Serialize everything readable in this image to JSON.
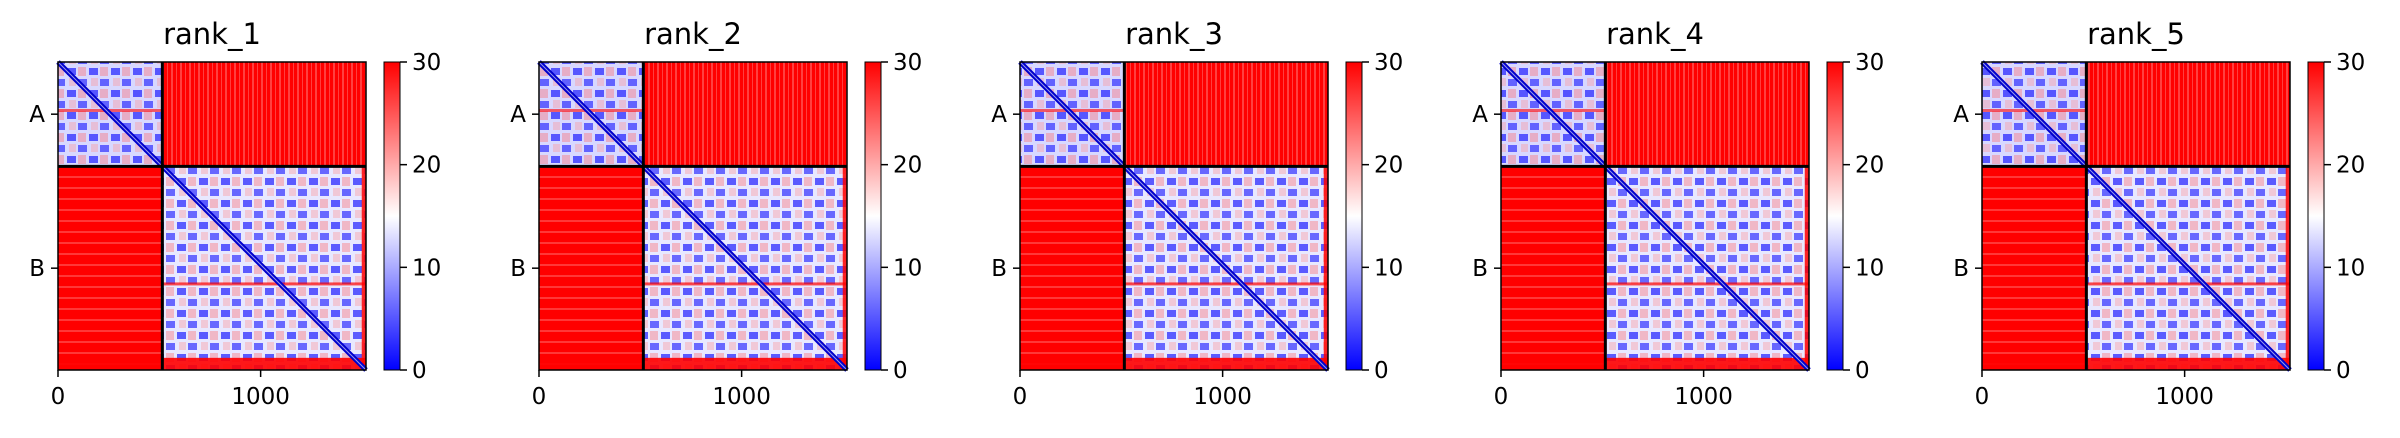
{
  "chart_data": [
    {
      "type": "heatmap",
      "title": "rank_1",
      "chains": [
        "A",
        "B"
      ],
      "chain_boundary": 515,
      "length": 1520,
      "xticks": [
        0,
        1000
      ],
      "colorbar": {
        "ticks": [
          0,
          10,
          20,
          30
        ],
        "vmin": 0,
        "vmax": 30,
        "colormap": "bwr"
      }
    },
    {
      "type": "heatmap",
      "title": "rank_2",
      "chains": [
        "A",
        "B"
      ],
      "chain_boundary": 515,
      "length": 1520,
      "xticks": [
        0,
        1000
      ],
      "colorbar": {
        "ticks": [
          0,
          10,
          20,
          30
        ],
        "vmin": 0,
        "vmax": 30,
        "colormap": "bwr"
      }
    },
    {
      "type": "heatmap",
      "title": "rank_3",
      "chains": [
        "A",
        "B"
      ],
      "chain_boundary": 515,
      "length": 1520,
      "xticks": [
        0,
        1000
      ],
      "colorbar": {
        "ticks": [
          0,
          10,
          20,
          30
        ],
        "vmin": 0,
        "vmax": 30,
        "colormap": "bwr"
      }
    },
    {
      "type": "heatmap",
      "title": "rank_4",
      "chains": [
        "A",
        "B"
      ],
      "chain_boundary": 515,
      "length": 1520,
      "xticks": [
        0,
        1000
      ],
      "colorbar": {
        "ticks": [
          0,
          10,
          20,
          30
        ],
        "vmin": 0,
        "vmax": 30,
        "colormap": "bwr"
      }
    },
    {
      "type": "heatmap",
      "title": "rank_5",
      "chains": [
        "A",
        "B"
      ],
      "chain_boundary": 515,
      "length": 1520,
      "xticks": [
        0,
        1000
      ],
      "colorbar": {
        "ticks": [
          0,
          10,
          20,
          30
        ],
        "vmin": 0,
        "vmax": 30,
        "colormap": "bwr"
      }
    }
  ],
  "colors": {
    "low": "#0000ff",
    "mid": "#ffffff",
    "high": "#ff0000"
  }
}
